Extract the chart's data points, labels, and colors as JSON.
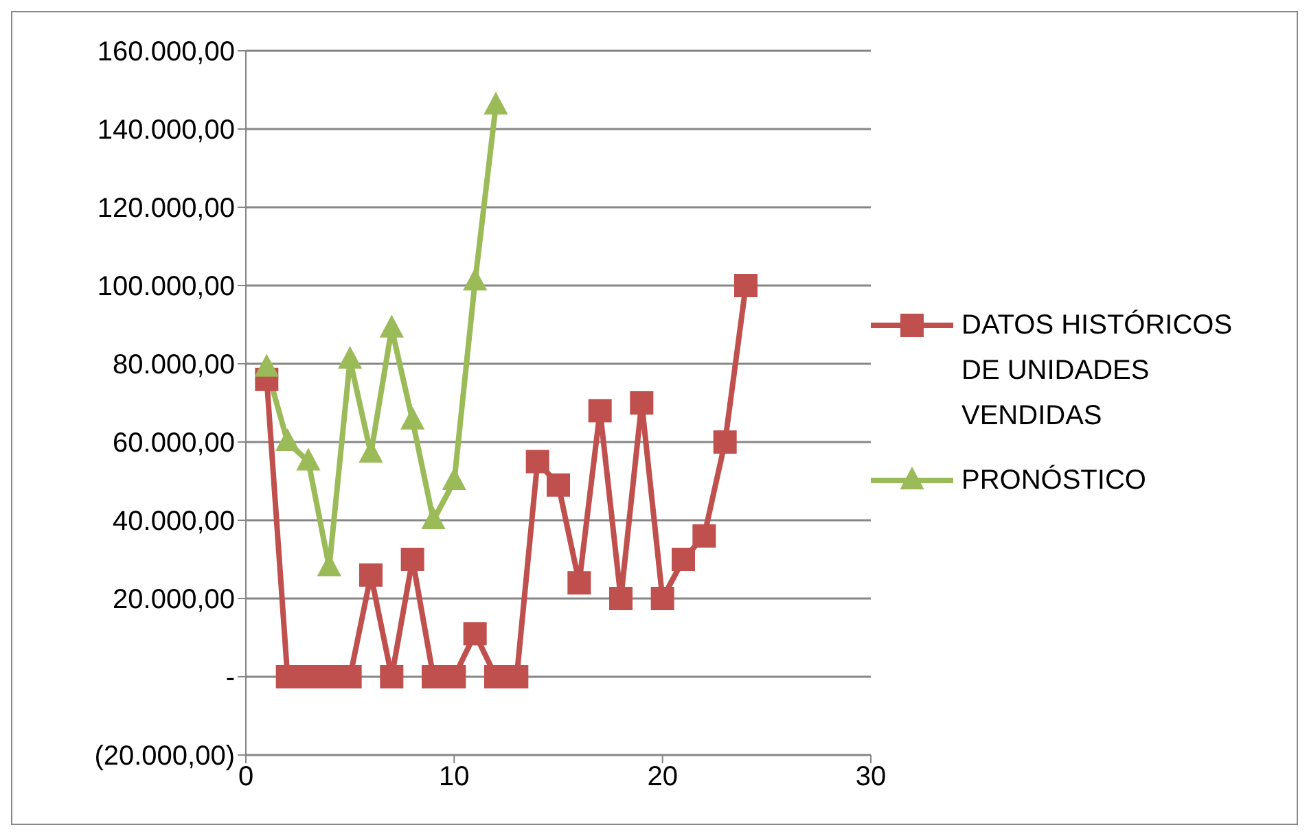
{
  "chart_data": {
    "type": "line",
    "series": [
      {
        "name": "DATOS  HISTÓRICOS DE UNIDADES VENDIDAS",
        "color": "#c0504d",
        "marker": "square",
        "x": [
          1,
          2,
          3,
          4,
          5,
          6,
          7,
          8,
          9,
          10,
          11,
          12,
          13,
          14,
          15,
          16,
          17,
          18,
          19,
          20,
          21,
          22,
          23,
          24
        ],
        "values": [
          76000,
          0,
          0,
          0,
          0,
          26000,
          0,
          30000,
          0,
          0,
          11000,
          0,
          0,
          55000,
          49000,
          24000,
          68000,
          20000,
          70000,
          20000,
          30000,
          36000,
          60000,
          100000
        ]
      },
      {
        "name": "PRONÓSTICO",
        "color": "#9bbb59",
        "marker": "triangle",
        "x": [
          1,
          2,
          3,
          4,
          5,
          6,
          7,
          8,
          9,
          10,
          11,
          12
        ],
        "values": [
          79000,
          60000,
          55000,
          28000,
          81000,
          57000,
          89000,
          65500,
          40000,
          50000,
          101000,
          146000
        ]
      }
    ],
    "xlim": [
      0,
      30
    ],
    "xticks": [
      0,
      10,
      20,
      30
    ],
    "ylim": [
      -20000,
      160000
    ],
    "yticks": [
      {
        "value": -20000,
        "label": "(20.000,00)"
      },
      {
        "value": 0,
        "label": "-"
      },
      {
        "value": 20000,
        "label": "20.000,00"
      },
      {
        "value": 40000,
        "label": "40.000,00"
      },
      {
        "value": 60000,
        "label": "60.000,00"
      },
      {
        "value": 80000,
        "label": "80.000,00"
      },
      {
        "value": 100000,
        "label": "100.000,00"
      },
      {
        "value": 120000,
        "label": "120.000,00"
      },
      {
        "value": 140000,
        "label": "140.000,00"
      },
      {
        "value": 160000,
        "label": "160.000,00"
      }
    ],
    "grid": "y",
    "legend": "right",
    "line_style": "solid"
  }
}
